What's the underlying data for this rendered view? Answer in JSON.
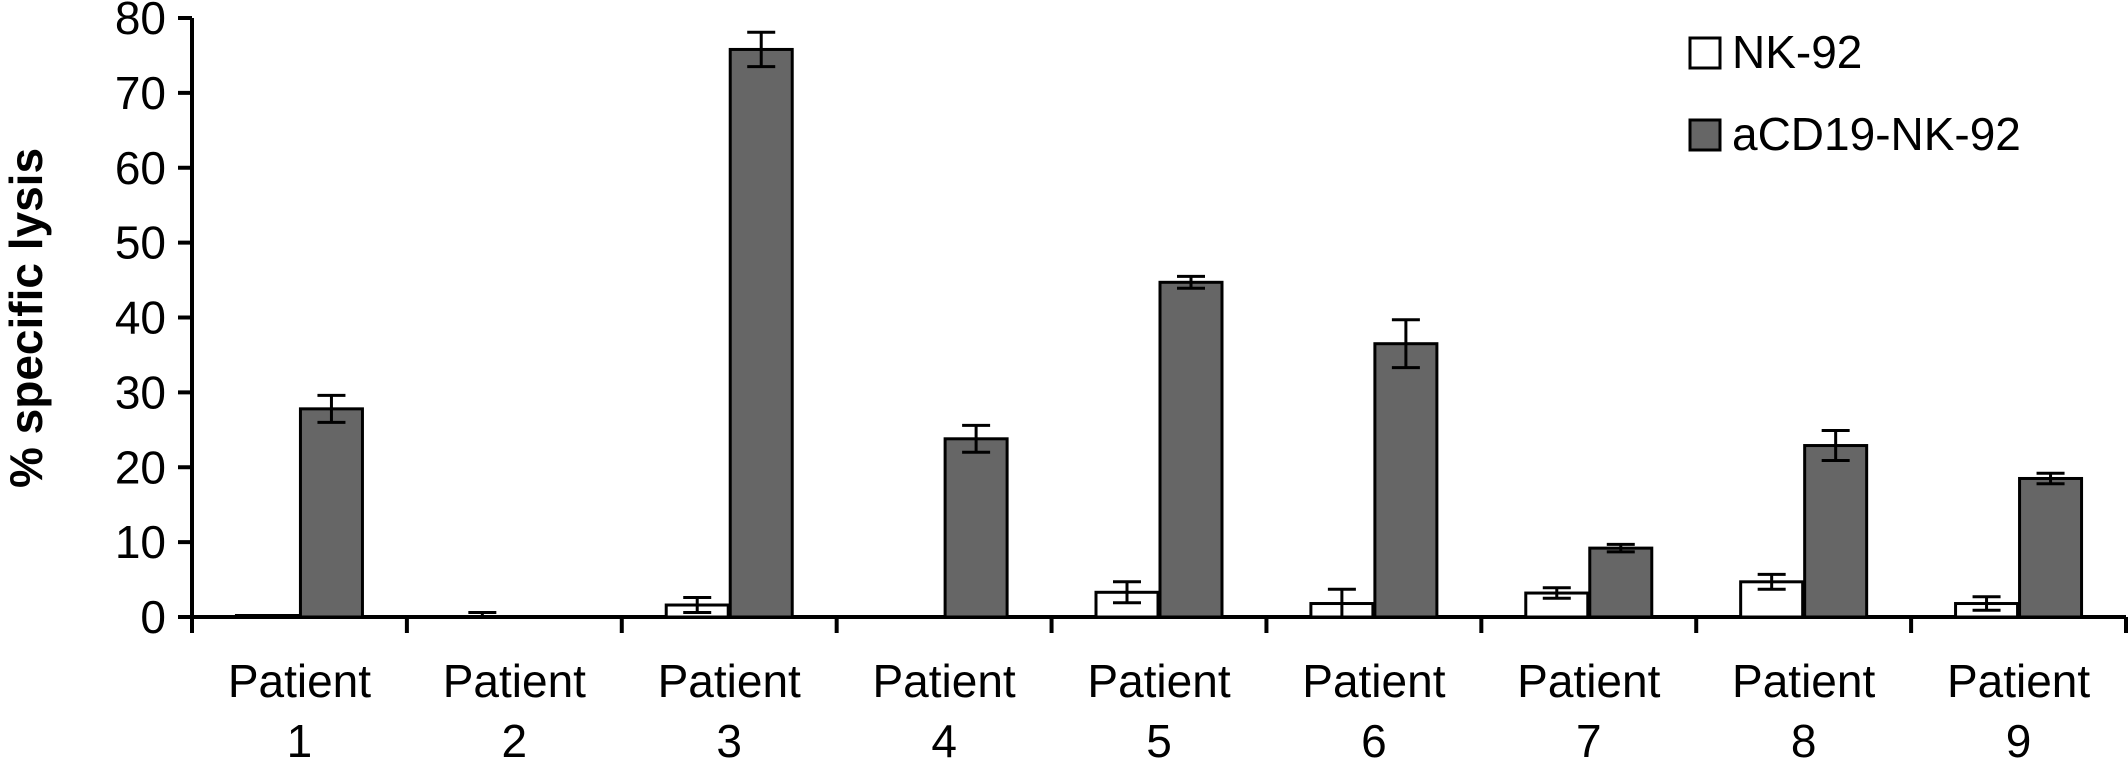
{
  "chart_data": {
    "type": "bar",
    "title": "",
    "xlabel": "",
    "ylabel": "% specific lysis",
    "ylim": [
      0,
      80
    ],
    "yticks": [
      "0",
      "10",
      "20",
      "30",
      "40",
      "50",
      "60",
      "70",
      "80"
    ],
    "grid": false,
    "legend_position": "top-right",
    "categories": [
      [
        "Patient",
        "1"
      ],
      [
        "Patient",
        "2"
      ],
      [
        "Patient",
        "3"
      ],
      [
        "Patient",
        "4"
      ],
      [
        "Patient",
        "5"
      ],
      [
        "Patient",
        "6"
      ],
      [
        "Patient",
        "7"
      ],
      [
        "Patient",
        "8"
      ],
      [
        "Patient",
        "9"
      ]
    ],
    "series": [
      {
        "name": "NK-92",
        "color": "#ffffff",
        "values": [
          0.2,
          0.0,
          1.6,
          0.0,
          3.3,
          1.8,
          3.2,
          4.7,
          1.8
        ],
        "errors": [
          0.0,
          0.6,
          1.0,
          0.0,
          1.4,
          1.9,
          0.7,
          1.0,
          0.9
        ]
      },
      {
        "name": "aCD19-NK-92",
        "color": "#666666",
        "values": [
          27.8,
          0.0,
          75.8,
          23.8,
          44.7,
          36.5,
          9.2,
          22.9,
          18.5
        ],
        "errors": [
          1.8,
          0.0,
          2.3,
          1.8,
          0.8,
          3.2,
          0.5,
          2.0,
          0.7
        ]
      }
    ]
  }
}
